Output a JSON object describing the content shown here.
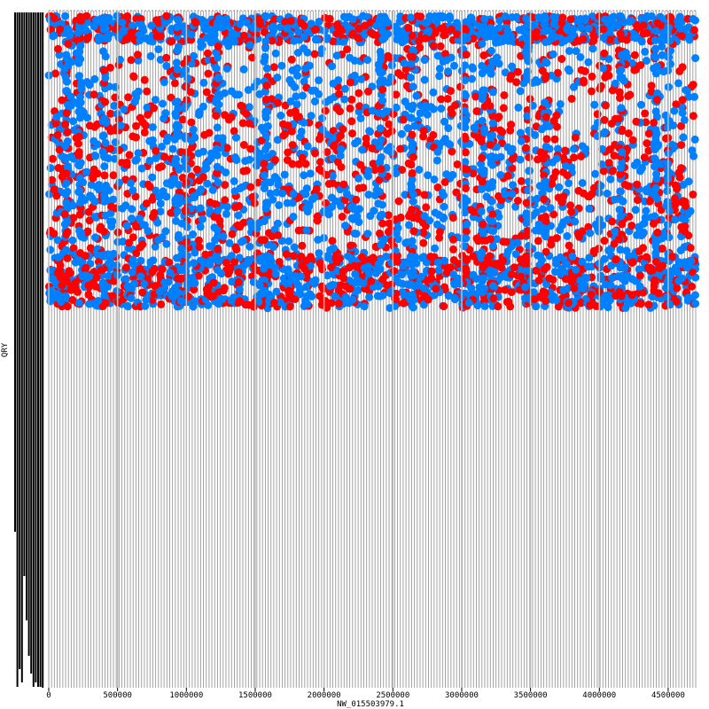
{
  "chart_data": {
    "type": "scatter",
    "title": "",
    "xlabel": "NW_015503979.1",
    "ylabel": "QRY",
    "xlim": [
      0,
      4700000
    ],
    "x_ticks": [
      0,
      500000,
      1000000,
      1500000,
      2000000,
      2500000,
      3000000,
      3500000,
      4000000,
      4500000
    ],
    "x_tick_labels": [
      "0",
      "500000",
      "1000000",
      "1500000",
      "2000000",
      "2500000",
      "3000000",
      "3500000",
      "4000000",
      "4500000"
    ],
    "grid": true,
    "legend": "none",
    "colors": {
      "forward": "#ff0000",
      "reverse": "#0080ff",
      "grid_dense": "#999999",
      "grid_major": "#bbbbbb",
      "query_bar": "#000000"
    },
    "series": [
      {
        "color": "#ff0000",
        "x_min": 0,
        "x_max": 4700000,
        "y_max_fraction": 0.44
      },
      {
        "color": "#0080ff",
        "x_min": 0,
        "x_max": 4700000,
        "y_max_fraction": 0.44
      }
    ]
  }
}
